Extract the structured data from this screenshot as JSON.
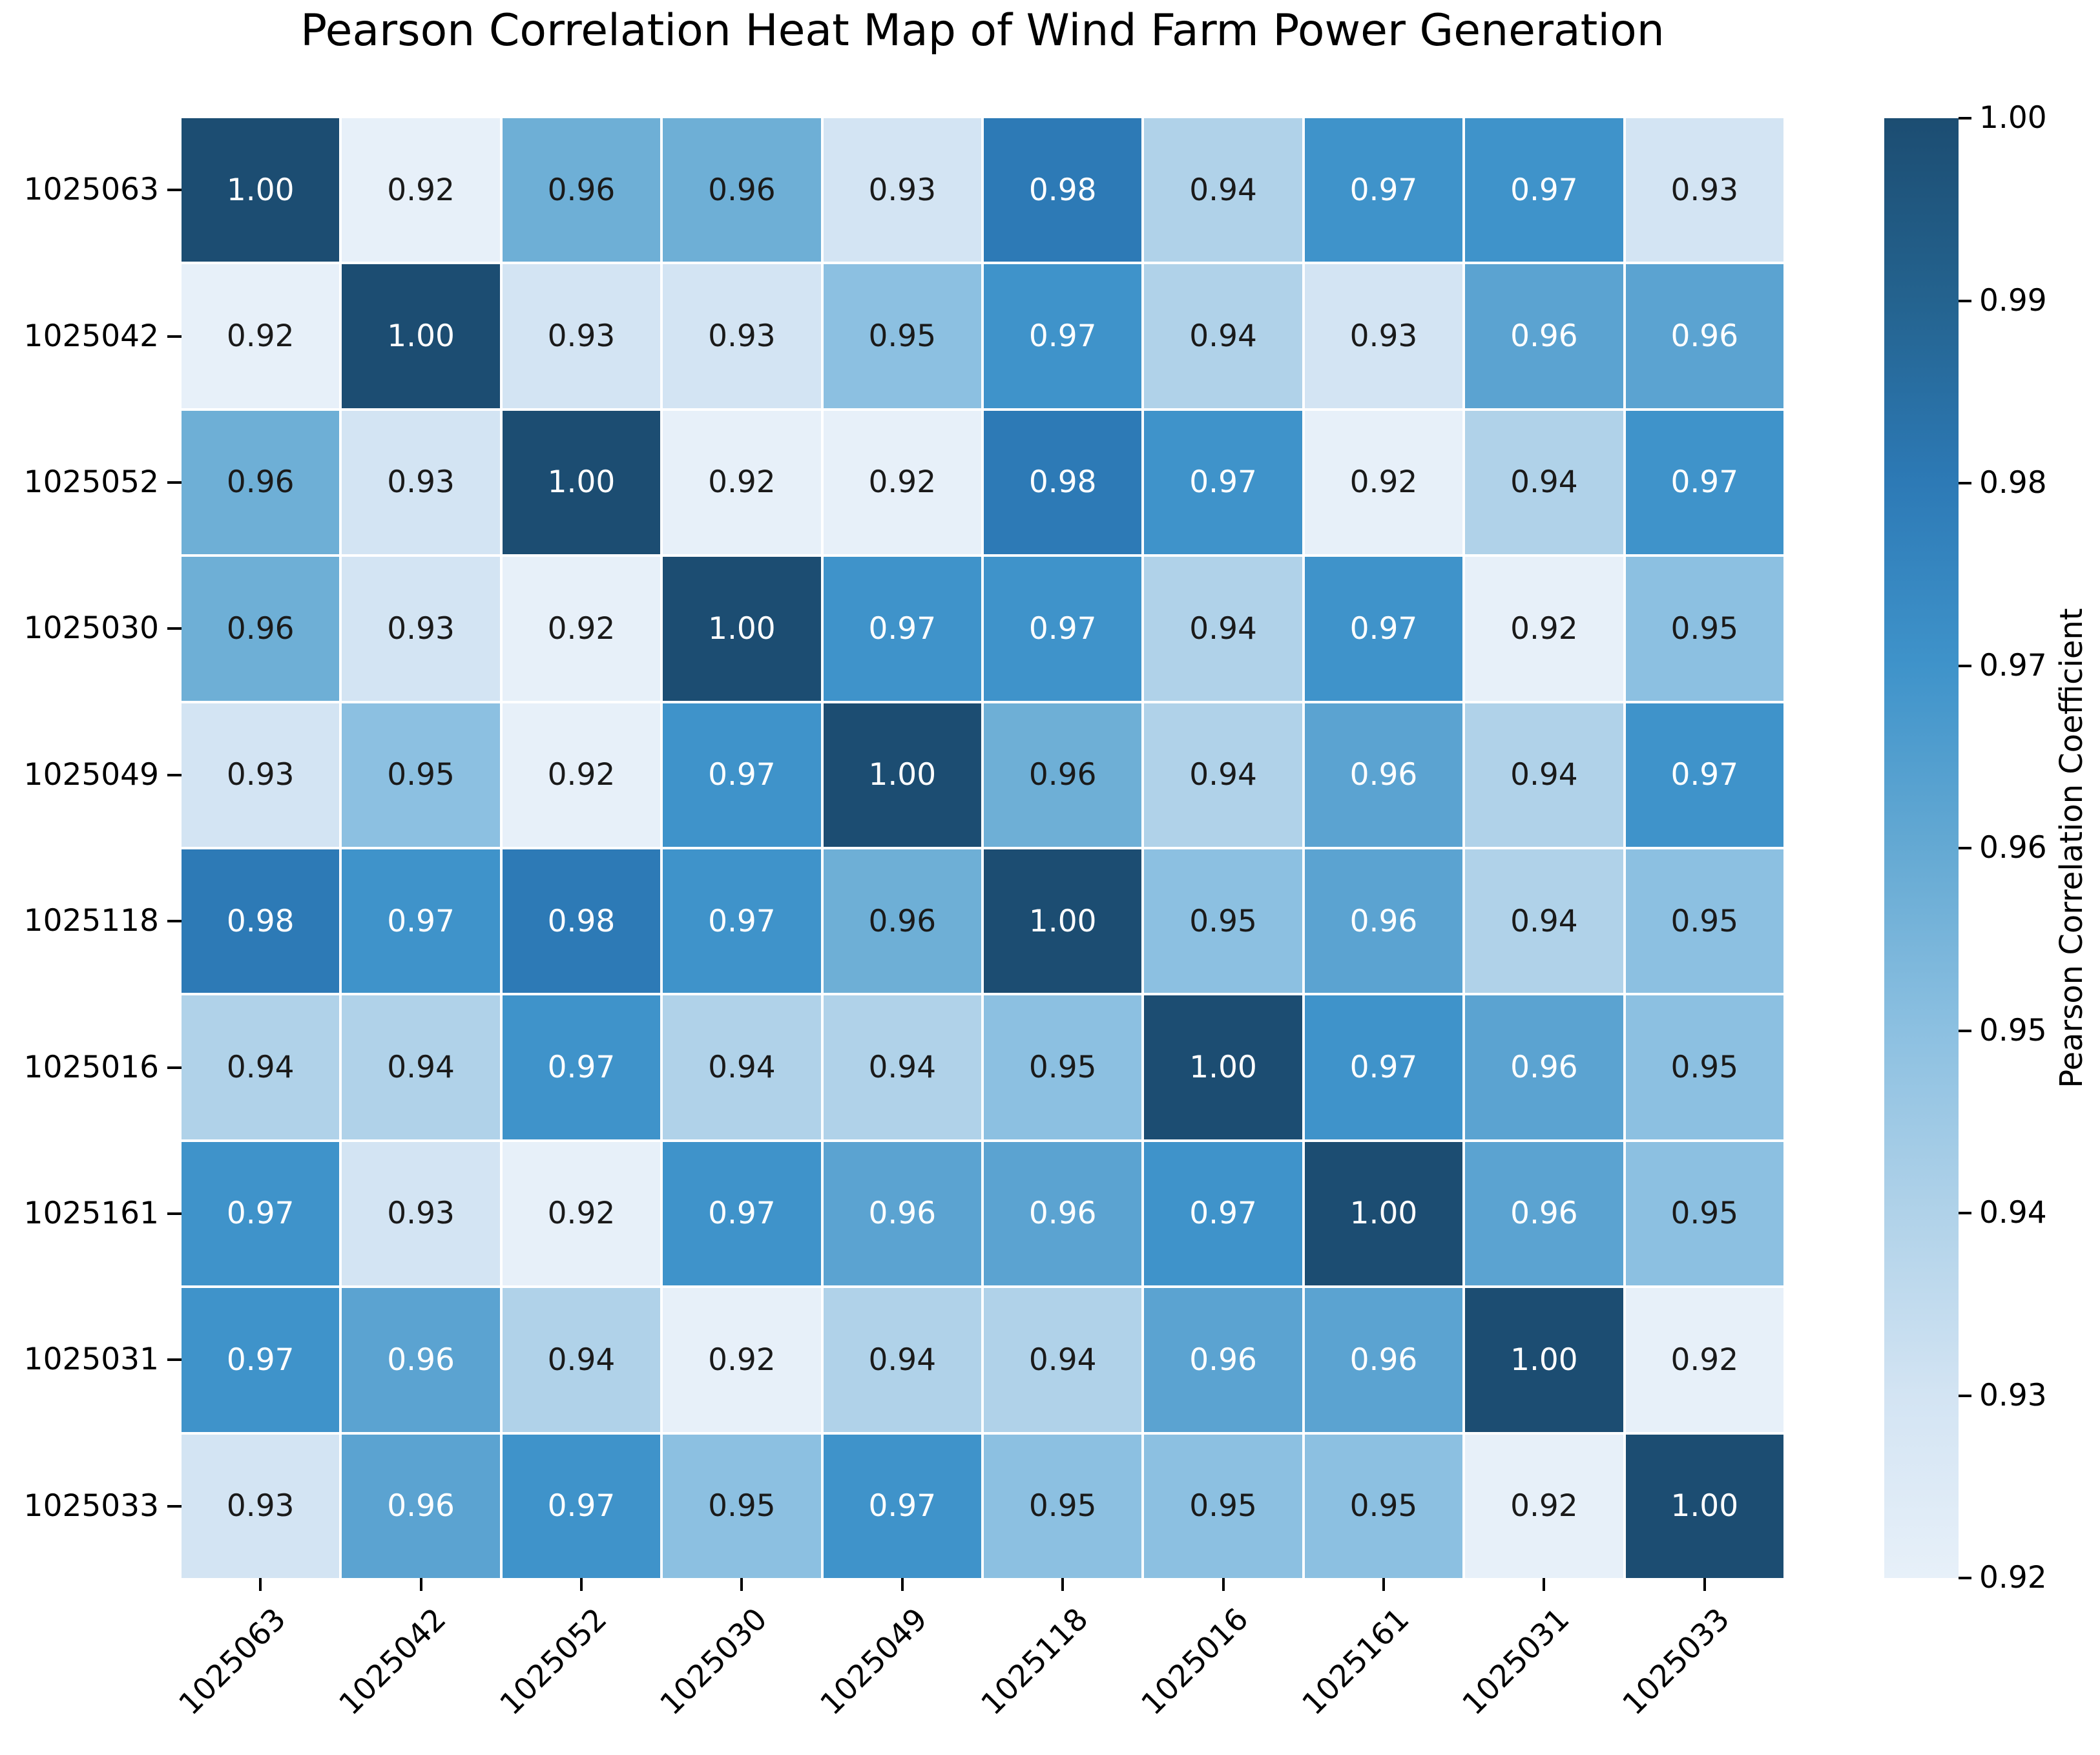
{
  "title": "Pearson Correlation Heat Map of Wind Farm Power Generation",
  "chart_data": {
    "type": "heatmap",
    "title": "Pearson Correlation Heat Map of Wind Farm Power Generation",
    "labels": [
      "1025063",
      "1025042",
      "1025052",
      "1025030",
      "1025049",
      "1025118",
      "1025016",
      "1025161",
      "1025031",
      "1025033"
    ],
    "matrix": [
      [
        1.0,
        0.92,
        0.96,
        0.96,
        0.93,
        0.98,
        0.94,
        0.97,
        0.97,
        0.93
      ],
      [
        0.92,
        1.0,
        0.93,
        0.93,
        0.95,
        0.97,
        0.94,
        0.93,
        0.96,
        0.96
      ],
      [
        0.96,
        0.93,
        1.0,
        0.92,
        0.92,
        0.98,
        0.97,
        0.92,
        0.94,
        0.97
      ],
      [
        0.96,
        0.93,
        0.92,
        1.0,
        0.97,
        0.97,
        0.94,
        0.97,
        0.92,
        0.95
      ],
      [
        0.93,
        0.95,
        0.92,
        0.97,
        1.0,
        0.96,
        0.94,
        0.96,
        0.94,
        0.97
      ],
      [
        0.98,
        0.97,
        0.98,
        0.97,
        0.96,
        1.0,
        0.95,
        0.96,
        0.94,
        0.95
      ],
      [
        0.94,
        0.94,
        0.97,
        0.94,
        0.94,
        0.95,
        1.0,
        0.97,
        0.96,
        0.95
      ],
      [
        0.97,
        0.93,
        0.92,
        0.97,
        0.96,
        0.96,
        0.97,
        1.0,
        0.96,
        0.95
      ],
      [
        0.97,
        0.96,
        0.94,
        0.92,
        0.94,
        0.94,
        0.96,
        0.96,
        1.0,
        0.92
      ],
      [
        0.93,
        0.96,
        0.97,
        0.95,
        0.97,
        0.95,
        0.95,
        0.95,
        0.92,
        1.0
      ]
    ],
    "annot_text_colors": [
      [
        "w",
        "b",
        "b",
        "b",
        "b",
        "w",
        "b",
        "w",
        "w",
        "b"
      ],
      [
        "b",
        "w",
        "b",
        "b",
        "b",
        "w",
        "b",
        "b",
        "w",
        "w"
      ],
      [
        "b",
        "b",
        "w",
        "b",
        "b",
        "w",
        "w",
        "b",
        "b",
        "w"
      ],
      [
        "b",
        "b",
        "b",
        "w",
        "w",
        "w",
        "b",
        "w",
        "b",
        "b"
      ],
      [
        "b",
        "b",
        "b",
        "w",
        "w",
        "b",
        "b",
        "w",
        "b",
        "w"
      ],
      [
        "w",
        "w",
        "w",
        "w",
        "b",
        "w",
        "b",
        "w",
        "b",
        "b"
      ],
      [
        "b",
        "b",
        "w",
        "b",
        "b",
        "b",
        "w",
        "w",
        "w",
        "b"
      ],
      [
        "w",
        "b",
        "b",
        "w",
        "w",
        "w",
        "w",
        "w",
        "w",
        "b"
      ],
      [
        "w",
        "w",
        "b",
        "b",
        "b",
        "b",
        "w",
        "w",
        "w",
        "b"
      ],
      [
        "b",
        "w",
        "w",
        "b",
        "w",
        "b",
        "b",
        "b",
        "b",
        "w"
      ]
    ],
    "annot_white": "#ffffff",
    "annot_black": "#1a1a1a",
    "value_min": 0.92,
    "value_max": 1.0,
    "colormap_stops": [
      {
        "v": 0.92,
        "c": "#e7f0f9"
      },
      {
        "v": 0.93,
        "c": "#d3e4f3"
      },
      {
        "v": 0.94,
        "c": "#b0d2e9"
      },
      {
        "v": 0.95,
        "c": "#8cc0e1"
      },
      {
        "v": 0.96,
        "c": "#64a9d3"
      },
      {
        "v": 0.97,
        "c": "#3f93ca"
      },
      {
        "v": 0.98,
        "c": "#2d7ab6"
      },
      {
        "v": 0.99,
        "c": "#24638f"
      },
      {
        "v": 1.0,
        "c": "#1c4d72"
      }
    ],
    "colorbar": {
      "label": "Pearson Correlation Coefficient",
      "ticks": [
        {
          "value": 1.0,
          "label": "1.00"
        },
        {
          "value": 0.99,
          "label": "0.99"
        },
        {
          "value": 0.98,
          "label": "0.98"
        },
        {
          "value": 0.97,
          "label": "0.97"
        },
        {
          "value": 0.96,
          "label": "0.96"
        },
        {
          "value": 0.95,
          "label": "0.95"
        },
        {
          "value": 0.94,
          "label": "0.94"
        },
        {
          "value": 0.93,
          "label": "0.93"
        },
        {
          "value": 0.92,
          "label": "0.92"
        }
      ]
    },
    "grid_on": false,
    "legend_position": "right-colorbar"
  }
}
